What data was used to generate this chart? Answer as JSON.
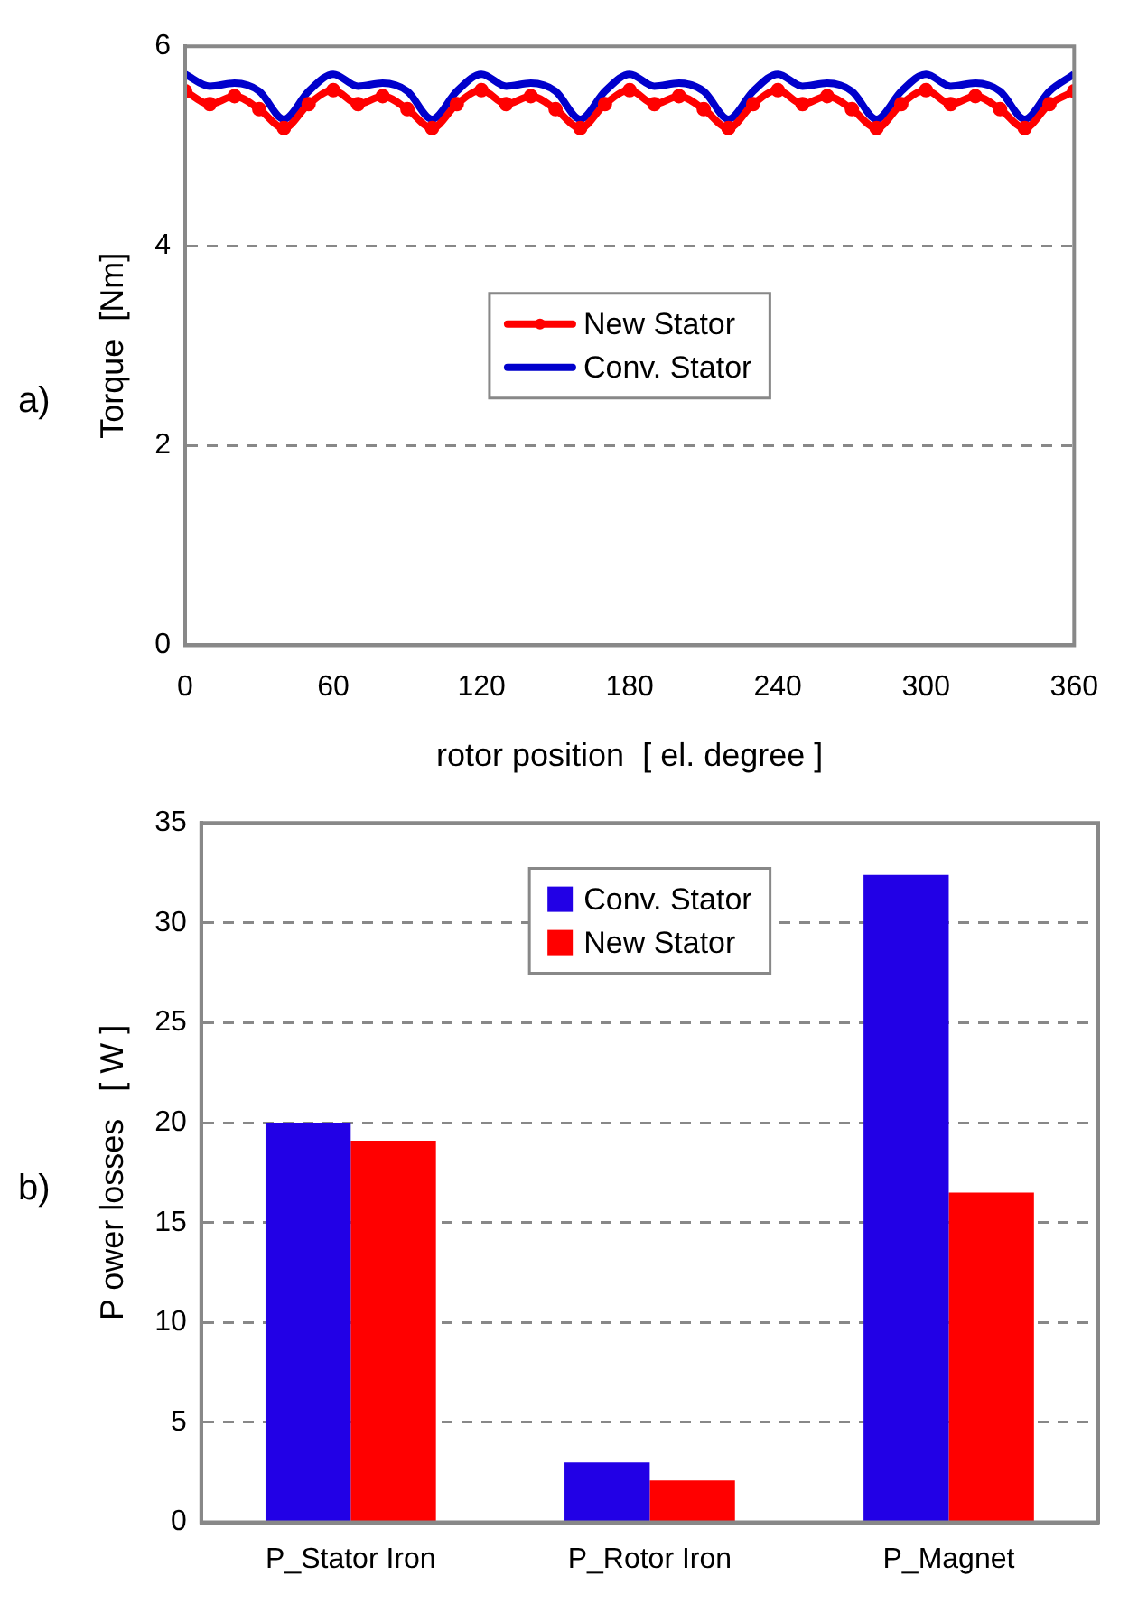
{
  "chart_data": [
    {
      "type": "line",
      "xlabel": "rotor position  [ el. degree ]",
      "ylabel": "Torque  [Nm]",
      "annotations": [
        "a)"
      ],
      "xlim": [
        0,
        360
      ],
      "xticks": [
        0,
        60,
        120,
        180,
        240,
        300,
        360
      ],
      "ylim": [
        0,
        6
      ],
      "yticks": [
        0,
        2,
        4,
        6
      ],
      "grid": "y",
      "legend": "center",
      "x": [
        0,
        10,
        20,
        30,
        40,
        50,
        60,
        70,
        80,
        90,
        100,
        110,
        120,
        130,
        140,
        150,
        160,
        170,
        180,
        190,
        200,
        210,
        220,
        230,
        240,
        250,
        260,
        270,
        280,
        290,
        300,
        310,
        320,
        330,
        340,
        350,
        360
      ],
      "series": [
        {
          "name": "New Stator",
          "color": "#ff0000",
          "marker": "circle",
          "values": [
            5.55,
            5.42,
            5.5,
            5.37,
            5.18,
            5.42,
            5.56,
            5.42,
            5.5,
            5.37,
            5.18,
            5.42,
            5.56,
            5.42,
            5.5,
            5.37,
            5.18,
            5.42,
            5.56,
            5.42,
            5.5,
            5.37,
            5.18,
            5.42,
            5.56,
            5.42,
            5.5,
            5.37,
            5.18,
            5.42,
            5.56,
            5.42,
            5.5,
            5.37,
            5.18,
            5.42,
            5.55
          ]
        },
        {
          "name": "Conv. Stator",
          "color": "#0000cc",
          "marker": "none",
          "values": [
            5.72,
            5.6,
            5.63,
            5.55,
            5.27,
            5.55,
            5.72,
            5.6,
            5.63,
            5.55,
            5.27,
            5.55,
            5.72,
            5.6,
            5.63,
            5.55,
            5.27,
            5.55,
            5.72,
            5.6,
            5.63,
            5.55,
            5.27,
            5.55,
            5.72,
            5.6,
            5.63,
            5.55,
            5.27,
            5.55,
            5.72,
            5.6,
            5.63,
            5.55,
            5.27,
            5.55,
            5.72
          ]
        }
      ]
    },
    {
      "type": "bar",
      "ylabel": "P ower losses   [ W ]",
      "annotations": [
        "b)"
      ],
      "categories": [
        "P_Stator Iron",
        "P_Rotor Iron",
        "P_Magnet"
      ],
      "ylim": [
        0,
        35
      ],
      "yticks": [
        0,
        5,
        10,
        15,
        20,
        25,
        30,
        35
      ],
      "grid": "y",
      "legend": "top",
      "series": [
        {
          "name": "Conv. Stator",
          "color": "#2200e6",
          "values": [
            20,
            3,
            32.4
          ]
        },
        {
          "name": "New Stator",
          "color": "#ff0000",
          "values": [
            19.1,
            2.1,
            16.5
          ]
        }
      ]
    }
  ]
}
